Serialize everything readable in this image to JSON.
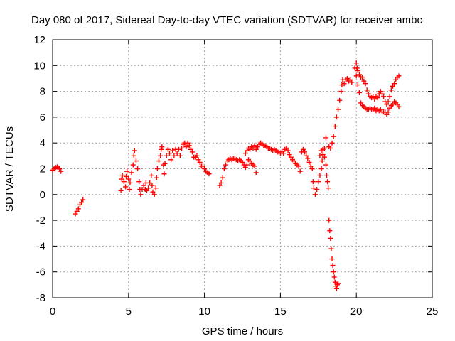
{
  "chart_data": {
    "type": "scatter",
    "title": "Day 080 of 2017, Sidereal Day-to-day VTEC variation (SDTVAR) for receiver ambc",
    "xlabel": "GPS time / hours",
    "ylabel": "SDTVAR / TECUs",
    "xlim": [
      0,
      25
    ],
    "ylim": [
      -8,
      12
    ],
    "x_ticks": [
      0,
      5,
      10,
      15,
      20,
      25
    ],
    "y_ticks": [
      -8,
      -6,
      -4,
      -2,
      0,
      2,
      4,
      6,
      8,
      10,
      12
    ],
    "x_tick_labels": [
      "0",
      "5",
      "10",
      "15",
      "20",
      "25"
    ],
    "y_tick_labels": [
      "-8",
      "-6",
      "-4",
      "-2",
      "0",
      "2",
      "4",
      "6",
      "8",
      "10",
      "12"
    ],
    "grid": true,
    "marker": "+",
    "color": "#ff0000",
    "series": [
      {
        "points": [
          [
            0.0,
            1.9
          ],
          [
            0.1,
            2.0
          ],
          [
            0.2,
            2.1
          ],
          [
            0.3,
            2.15
          ],
          [
            0.35,
            2.1
          ],
          [
            0.45,
            2.0
          ],
          [
            0.55,
            1.8
          ],
          [
            1.5,
            -1.5
          ],
          [
            1.6,
            -1.3
          ],
          [
            1.7,
            -1.1
          ],
          [
            1.8,
            -0.8
          ],
          [
            1.9,
            -0.6
          ],
          [
            2.0,
            -0.4
          ],
          [
            4.5,
            0.3
          ],
          [
            4.55,
            1.2
          ],
          [
            4.6,
            1.5
          ],
          [
            4.7,
            1.0
          ],
          [
            4.8,
            0.6
          ],
          [
            4.85,
            1.4
          ],
          [
            4.9,
            1.8
          ],
          [
            5.0,
            1.2
          ],
          [
            5.05,
            0.4
          ],
          [
            5.1,
            0.9
          ],
          [
            5.2,
            1.7
          ],
          [
            5.3,
            2.3
          ],
          [
            5.35,
            3.0
          ],
          [
            5.4,
            3.4
          ],
          [
            5.5,
            2.6
          ],
          [
            5.6,
            2.0
          ],
          [
            5.7,
            1.0
          ],
          [
            5.75,
            0.4
          ],
          [
            5.8,
            0.0
          ],
          [
            5.9,
            0.4
          ],
          [
            6.0,
            0.7
          ],
          [
            6.1,
            0.4
          ],
          [
            6.15,
            0.9
          ],
          [
            6.2,
            0.3
          ],
          [
            6.3,
            0.5
          ],
          [
            6.4,
            0.9
          ],
          [
            6.5,
            1.5
          ],
          [
            6.55,
            0.7
          ],
          [
            6.6,
            0.2
          ],
          [
            6.7,
            0.0
          ],
          [
            6.8,
            0.5
          ],
          [
            6.85,
            1.3
          ],
          [
            6.9,
            2.0
          ],
          [
            7.0,
            2.6
          ],
          [
            7.1,
            3.0
          ],
          [
            7.15,
            3.5
          ],
          [
            7.2,
            3.7
          ],
          [
            7.3,
            2.3
          ],
          [
            7.35,
            1.6
          ],
          [
            7.4,
            2.4
          ],
          [
            7.5,
            3.0
          ],
          [
            7.6,
            3.5
          ],
          [
            7.7,
            3.2
          ],
          [
            7.8,
            2.7
          ],
          [
            7.9,
            3.4
          ],
          [
            8.0,
            3.0
          ],
          [
            8.1,
            3.5
          ],
          [
            8.2,
            3.2
          ],
          [
            8.3,
            3.5
          ],
          [
            8.4,
            3.0
          ],
          [
            8.5,
            3.6
          ],
          [
            8.6,
            3.9
          ],
          [
            8.7,
            4.0
          ],
          [
            8.8,
            3.7
          ],
          [
            8.9,
            4.0
          ],
          [
            9.0,
            3.8
          ],
          [
            9.1,
            3.5
          ],
          [
            9.2,
            3.3
          ],
          [
            9.3,
            2.9
          ],
          [
            9.4,
            2.9
          ],
          [
            9.5,
            3.0
          ],
          [
            9.6,
            2.7
          ],
          [
            9.7,
            2.5
          ],
          [
            9.8,
            2.2
          ],
          [
            9.9,
            2.2
          ],
          [
            10.0,
            2.0
          ],
          [
            10.1,
            1.8
          ],
          [
            10.2,
            1.7
          ],
          [
            10.3,
            1.6
          ],
          [
            11.0,
            0.7
          ],
          [
            11.1,
            0.9
          ],
          [
            11.2,
            1.3
          ],
          [
            11.3,
            2.0
          ],
          [
            11.4,
            2.3
          ],
          [
            11.5,
            2.6
          ],
          [
            11.6,
            2.7
          ],
          [
            11.7,
            2.8
          ],
          [
            11.8,
            2.7
          ],
          [
            11.9,
            2.8
          ],
          [
            12.0,
            2.8
          ],
          [
            12.1,
            2.7
          ],
          [
            12.2,
            2.6
          ],
          [
            12.3,
            2.7
          ],
          [
            12.4,
            2.6
          ],
          [
            12.5,
            2.5
          ],
          [
            12.6,
            2.3
          ],
          [
            12.7,
            2.1
          ],
          [
            12.8,
            2.3
          ],
          [
            12.9,
            2.7
          ],
          [
            13.0,
            2.6
          ],
          [
            13.1,
            2.4
          ],
          [
            13.2,
            2.3
          ],
          [
            13.3,
            2.2
          ],
          [
            13.4,
            1.7
          ],
          [
            12.7,
            3.2
          ],
          [
            12.8,
            3.4
          ],
          [
            12.9,
            3.6
          ],
          [
            13.0,
            3.5
          ],
          [
            13.1,
            3.7
          ],
          [
            13.2,
            3.6
          ],
          [
            13.3,
            3.8
          ],
          [
            13.4,
            3.5
          ],
          [
            13.5,
            3.7
          ],
          [
            13.6,
            3.9
          ],
          [
            13.7,
            4.0
          ],
          [
            13.8,
            3.9
          ],
          [
            13.9,
            3.8
          ],
          [
            14.0,
            3.8
          ],
          [
            14.1,
            3.7
          ],
          [
            14.2,
            3.6
          ],
          [
            14.3,
            3.6
          ],
          [
            14.4,
            3.5
          ],
          [
            14.5,
            3.4
          ],
          [
            14.6,
            3.5
          ],
          [
            14.7,
            3.4
          ],
          [
            14.8,
            3.3
          ],
          [
            14.9,
            3.3
          ],
          [
            15.0,
            3.2
          ],
          [
            15.1,
            3.3
          ],
          [
            15.2,
            3.2
          ],
          [
            15.3,
            3.5
          ],
          [
            15.4,
            3.6
          ],
          [
            15.5,
            3.4
          ],
          [
            15.6,
            3.1
          ],
          [
            15.7,
            2.9
          ],
          [
            15.8,
            2.7
          ],
          [
            15.9,
            2.6
          ],
          [
            16.0,
            2.4
          ],
          [
            16.1,
            2.3
          ],
          [
            16.2,
            2.2
          ],
          [
            16.3,
            1.8
          ],
          [
            16.4,
            3.3
          ],
          [
            16.5,
            3.5
          ],
          [
            16.6,
            3.3
          ],
          [
            16.7,
            3.0
          ],
          [
            16.8,
            2.8
          ],
          [
            16.9,
            2.5
          ],
          [
            17.0,
            2.2
          ],
          [
            17.1,
            2.0
          ],
          [
            17.15,
            1.0
          ],
          [
            17.2,
            0.5
          ],
          [
            17.3,
            0.0
          ],
          [
            17.4,
            0.4
          ],
          [
            17.5,
            1.0
          ],
          [
            17.6,
            1.5
          ],
          [
            17.7,
            2.0
          ],
          [
            17.75,
            2.6
          ],
          [
            17.8,
            3.1
          ],
          [
            17.9,
            3.6
          ],
          [
            18.0,
            4.4
          ],
          [
            17.6,
            3.0
          ],
          [
            17.7,
            3.4
          ],
          [
            17.8,
            3.5
          ],
          [
            17.9,
            2.9
          ],
          [
            18.0,
            2.3
          ],
          [
            18.05,
            1.5
          ],
          [
            18.1,
            1.0
          ],
          [
            18.15,
            0.5
          ],
          [
            18.2,
            3.7
          ],
          [
            18.3,
            3.6
          ],
          [
            18.4,
            4.0
          ],
          [
            18.5,
            4.5
          ],
          [
            18.6,
            5.3
          ],
          [
            18.7,
            6.0
          ],
          [
            18.8,
            6.6
          ],
          [
            18.9,
            7.3
          ],
          [
            19.0,
            8.0
          ],
          [
            19.05,
            8.5
          ],
          [
            19.1,
            8.9
          ],
          [
            19.2,
            8.6
          ],
          [
            19.3,
            8.9
          ],
          [
            19.4,
            9.0
          ],
          [
            19.5,
            8.8
          ],
          [
            19.6,
            8.9
          ],
          [
            19.7,
            8.7
          ],
          [
            18.2,
            -2.0
          ],
          [
            18.25,
            -2.8
          ],
          [
            18.3,
            -3.4
          ],
          [
            18.35,
            -4.2
          ],
          [
            18.4,
            -5.0
          ],
          [
            18.45,
            -5.5
          ],
          [
            18.5,
            -6.0
          ],
          [
            18.55,
            -6.4
          ],
          [
            18.6,
            -6.8
          ],
          [
            18.65,
            -7.1
          ],
          [
            18.7,
            -7.3
          ],
          [
            18.75,
            -7.0
          ],
          [
            18.8,
            -6.9
          ],
          [
            19.9,
            9.8
          ],
          [
            20.0,
            10.2
          ],
          [
            20.05,
            9.8
          ],
          [
            20.1,
            9.6
          ],
          [
            20.2,
            9.3
          ],
          [
            20.3,
            9.1
          ],
          [
            20.4,
            9.1
          ],
          [
            20.5,
            8.8
          ],
          [
            20.6,
            8.6
          ],
          [
            20.7,
            8.1
          ],
          [
            20.8,
            7.8
          ],
          [
            20.9,
            7.6
          ],
          [
            21.0,
            7.5
          ],
          [
            21.1,
            7.6
          ],
          [
            21.2,
            7.4
          ],
          [
            21.3,
            7.6
          ],
          [
            21.4,
            7.5
          ],
          [
            21.5,
            7.8
          ],
          [
            21.6,
            8.0
          ],
          [
            21.7,
            7.8
          ],
          [
            21.8,
            7.6
          ],
          [
            21.9,
            7.2
          ],
          [
            22.0,
            7.0
          ],
          [
            20.0,
            9.2
          ],
          [
            20.1,
            8.5
          ],
          [
            20.2,
            7.9
          ],
          [
            20.3,
            7.1
          ],
          [
            20.4,
            6.9
          ],
          [
            20.5,
            6.8
          ],
          [
            20.6,
            6.7
          ],
          [
            20.7,
            6.6
          ],
          [
            20.8,
            6.6
          ],
          [
            20.9,
            6.7
          ],
          [
            21.0,
            6.6
          ],
          [
            21.1,
            6.6
          ],
          [
            21.2,
            6.7
          ],
          [
            21.3,
            6.5
          ],
          [
            21.4,
            6.6
          ],
          [
            21.5,
            6.5
          ],
          [
            21.6,
            6.6
          ],
          [
            21.7,
            6.4
          ],
          [
            21.8,
            6.4
          ],
          [
            21.9,
            6.4
          ],
          [
            22.0,
            6.2
          ],
          [
            22.1,
            6.4
          ],
          [
            22.2,
            6.7
          ],
          [
            22.1,
            7.2
          ],
          [
            22.2,
            7.6
          ],
          [
            22.3,
            8.1
          ],
          [
            22.4,
            8.4
          ],
          [
            22.5,
            8.6
          ],
          [
            22.6,
            8.9
          ],
          [
            22.7,
            9.1
          ],
          [
            22.8,
            9.2
          ],
          [
            22.3,
            6.9
          ],
          [
            22.4,
            7.0
          ],
          [
            22.5,
            7.2
          ],
          [
            22.6,
            7.1
          ],
          [
            22.7,
            7.0
          ],
          [
            22.8,
            6.8
          ]
        ]
      }
    ]
  }
}
